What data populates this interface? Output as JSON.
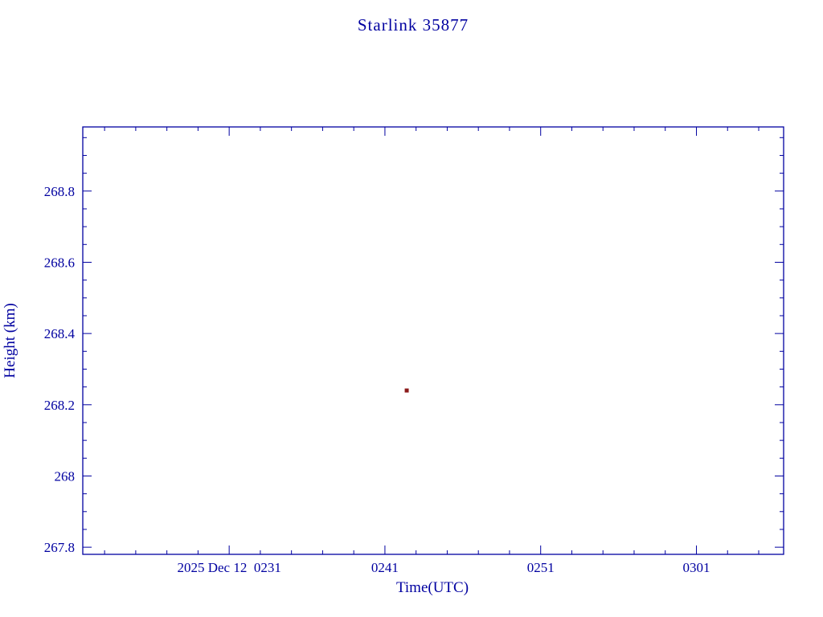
{
  "chart_data": {
    "type": "scatter",
    "title": "Starlink 35877",
    "xlabel": "Time(UTC)",
    "ylabel": "Height (km)",
    "grid": false,
    "marker": "square",
    "colors": {
      "text": "#0000A0",
      "axis": "#0000A0",
      "point": "#8B1A1A",
      "background": "#FFFFFF"
    },
    "x_axis": {
      "unit": "minutes after 2025 Dec 12 00:00 UTC",
      "min": 141.6,
      "max": 186.6,
      "minor_tick_step": 2,
      "major_ticks": [
        {
          "value": 151,
          "label": "2025 Dec 12  0231"
        },
        {
          "value": 161,
          "label": "0241"
        },
        {
          "value": 171,
          "label": "0251"
        },
        {
          "value": 181,
          "label": "0301"
        }
      ]
    },
    "y_axis": {
      "unit": "km",
      "min": 267.78,
      "max": 268.98,
      "minor_tick_step": 0.05,
      "major_tick_step": 0.2,
      "major_ticks": [
        {
          "value": 267.8,
          "label": "267.8"
        },
        {
          "value": 268.0,
          "label": "268"
        },
        {
          "value": 268.2,
          "label": "268.2"
        },
        {
          "value": 268.4,
          "label": "268.4"
        },
        {
          "value": 268.6,
          "label": "268.6"
        },
        {
          "value": 268.8,
          "label": "268.8"
        }
      ]
    },
    "points": [
      {
        "x": 162.4,
        "time_utc": "0242",
        "y": 268.24,
        "height_km": 268.24
      }
    ]
  }
}
